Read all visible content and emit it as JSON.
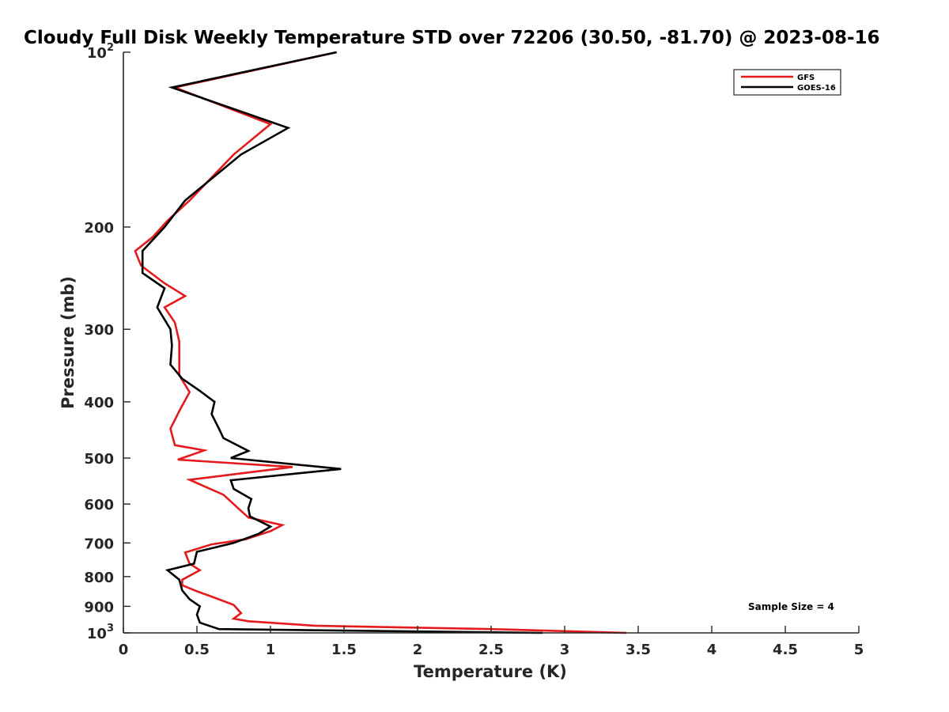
{
  "chart_data": {
    "type": "line",
    "title": "Cloudy Full Disk Weekly Temperature STD over 72206 (30.50, -81.70) @ 2023-08-16",
    "xlabel": "Temperature (K)",
    "ylabel": "Pressure (mb)",
    "xlim": [
      0,
      5
    ],
    "ylim": [
      100,
      1000
    ],
    "yscale": "log",
    "y_reversed": true,
    "x_ticks": [
      "0",
      "0.5",
      "1",
      "1.5",
      "2",
      "2.5",
      "3",
      "3.5",
      "4",
      "4.5",
      "5"
    ],
    "x_tick_values": [
      0,
      0.5,
      1,
      1.5,
      2,
      2.5,
      3,
      3.5,
      4,
      4.5,
      5
    ],
    "y_ticks": [
      {
        "value": 100,
        "label": "10",
        "sup": "2"
      },
      {
        "value": 200,
        "label": "200",
        "sup": ""
      },
      {
        "value": 300,
        "label": "300",
        "sup": ""
      },
      {
        "value": 400,
        "label": "400",
        "sup": ""
      },
      {
        "value": 500,
        "label": "500",
        "sup": ""
      },
      {
        "value": 600,
        "label": "600",
        "sup": ""
      },
      {
        "value": 700,
        "label": "700",
        "sup": ""
      },
      {
        "value": 800,
        "label": "800",
        "sup": ""
      },
      {
        "value": 900,
        "label": "900",
        "sup": ""
      },
      {
        "value": 1000,
        "label": "10",
        "sup": "3"
      }
    ],
    "legend_position": "top-right",
    "annotation": "Sample Size = 4",
    "series": [
      {
        "name": "GFS",
        "color": "#e41a1c",
        "points": [
          [
            1.45,
            100
          ],
          [
            0.35,
            115
          ],
          [
            1.0,
            133
          ],
          [
            0.75,
            150
          ],
          [
            0.45,
            180
          ],
          [
            0.3,
            195
          ],
          [
            0.2,
            208
          ],
          [
            0.08,
            220
          ],
          [
            0.12,
            233
          ],
          [
            0.28,
            250
          ],
          [
            0.42,
            263
          ],
          [
            0.28,
            275
          ],
          [
            0.35,
            292
          ],
          [
            0.38,
            315
          ],
          [
            0.38,
            360
          ],
          [
            0.45,
            385
          ],
          [
            0.38,
            415
          ],
          [
            0.32,
            445
          ],
          [
            0.35,
            475
          ],
          [
            0.55,
            485
          ],
          [
            0.37,
            503
          ],
          [
            1.15,
            518
          ],
          [
            0.45,
            545
          ],
          [
            0.68,
            578
          ],
          [
            0.78,
            610
          ],
          [
            0.85,
            633
          ],
          [
            1.08,
            652
          ],
          [
            1.0,
            668
          ],
          [
            0.83,
            690
          ],
          [
            0.6,
            704
          ],
          [
            0.42,
            727
          ],
          [
            0.45,
            760
          ],
          [
            0.52,
            780
          ],
          [
            0.4,
            810
          ],
          [
            0.4,
            828
          ],
          [
            0.5,
            848
          ],
          [
            0.6,
            866
          ],
          [
            0.75,
            895
          ],
          [
            0.8,
            925
          ],
          [
            0.75,
            945
          ],
          [
            0.85,
            955
          ],
          [
            1.3,
            972
          ],
          [
            2.5,
            985
          ],
          [
            3.42,
            1000
          ]
        ]
      },
      {
        "name": "GOES-16",
        "color": "#000000",
        "points": [
          [
            1.45,
            100
          ],
          [
            0.33,
            115
          ],
          [
            1.12,
            135
          ],
          [
            0.8,
            150
          ],
          [
            0.42,
            180
          ],
          [
            0.28,
            200
          ],
          [
            0.13,
            220
          ],
          [
            0.13,
            240
          ],
          [
            0.28,
            255
          ],
          [
            0.23,
            275
          ],
          [
            0.32,
            300
          ],
          [
            0.33,
            320
          ],
          [
            0.32,
            345
          ],
          [
            0.4,
            365
          ],
          [
            0.52,
            383
          ],
          [
            0.62,
            400
          ],
          [
            0.6,
            420
          ],
          [
            0.65,
            445
          ],
          [
            0.68,
            462
          ],
          [
            0.85,
            486
          ],
          [
            0.73,
            500
          ],
          [
            1.48,
            522
          ],
          [
            0.73,
            546
          ],
          [
            0.75,
            565
          ],
          [
            0.87,
            588
          ],
          [
            0.85,
            610
          ],
          [
            0.86,
            630
          ],
          [
            1.0,
            656
          ],
          [
            0.92,
            675
          ],
          [
            0.75,
            700
          ],
          [
            0.5,
            725
          ],
          [
            0.48,
            760
          ],
          [
            0.3,
            780
          ],
          [
            0.38,
            810
          ],
          [
            0.4,
            845
          ],
          [
            0.45,
            875
          ],
          [
            0.52,
            900
          ],
          [
            0.5,
            930
          ],
          [
            0.52,
            960
          ],
          [
            0.65,
            985
          ],
          [
            2.85,
            1000
          ]
        ]
      }
    ]
  }
}
